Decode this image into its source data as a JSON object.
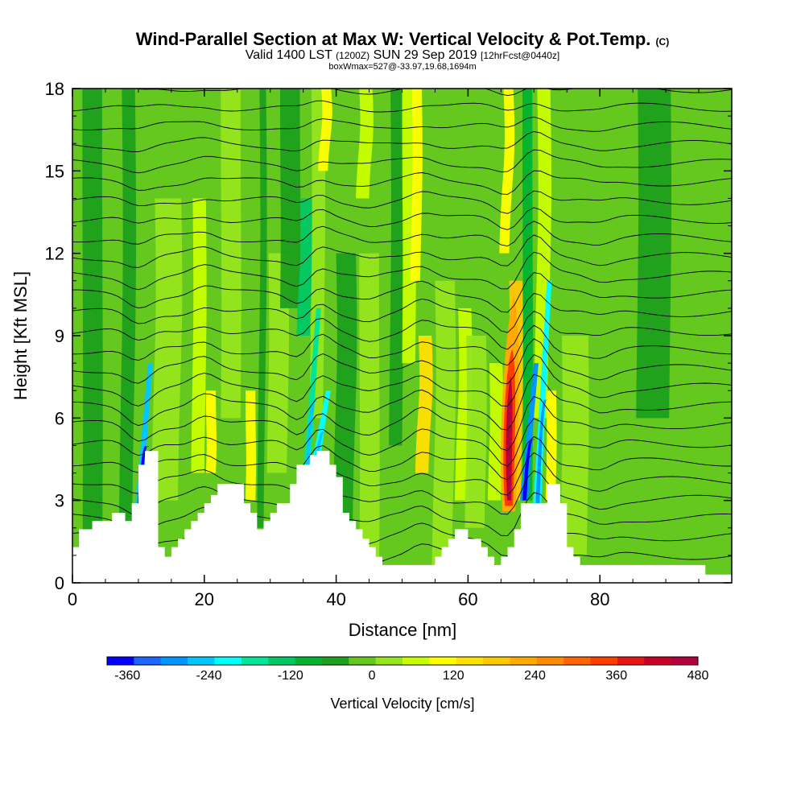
{
  "header": {
    "title": "Wind-Parallel Section at Max W: Vertical Velocity & Pot.Temp.",
    "copyright": "(C)",
    "valid_prefix": "Valid 1400 LST",
    "valid_utc": "(1200Z)",
    "valid_date": "SUN 29 Sep 2019",
    "forecast": "[12hrFcst@0440z]",
    "box_info": "boxWmax=527@-33.97,19.68,1694m"
  },
  "chart_data": {
    "type": "heatmap",
    "title": "Wind-Parallel Section at Max W: Vertical Velocity & Pot.Temp.",
    "xlabel": "Distance [nm]",
    "ylabel": "Height [Kft MSL]",
    "xlim": [
      0,
      100
    ],
    "ylim": [
      0,
      18
    ],
    "x_ticks": [
      "0",
      "20",
      "40",
      "60",
      "80"
    ],
    "y_ticks": [
      "0",
      "3",
      "6",
      "9",
      "12",
      "15",
      "18"
    ],
    "colorbar": {
      "title": "Vertical Velocity [cm/s]",
      "labels": [
        "-360",
        "-240",
        "-120",
        "0",
        "120",
        "240",
        "360",
        "480"
      ],
      "min": -390,
      "max": 480,
      "colors": [
        "#0000ff",
        "#1e64ff",
        "#0096ff",
        "#00c8ff",
        "#00ffff",
        "#00e696",
        "#00c864",
        "#00b432",
        "#1ea01e",
        "#64c81e",
        "#96e61e",
        "#c8ff00",
        "#ffff00",
        "#ffe100",
        "#ffc800",
        "#ffaa00",
        "#ff8c00",
        "#ff6400",
        "#ff3c00",
        "#e61414",
        "#c80028",
        "#b4003c"
      ]
    },
    "terrain_kft": [
      [
        0,
        1.3
      ],
      [
        1,
        1.95
      ],
      [
        2,
        1.95
      ],
      [
        3,
        2.25
      ],
      [
        4,
        2.25
      ],
      [
        5,
        2.25
      ],
      [
        6,
        2.55
      ],
      [
        7,
        2.55
      ],
      [
        8,
        2.25
      ],
      [
        9,
        2.9
      ],
      [
        10,
        4.3
      ],
      [
        11,
        4.8
      ],
      [
        12,
        4.8
      ],
      [
        13,
        1.3
      ],
      [
        14,
        0.95
      ],
      [
        15,
        1.3
      ],
      [
        16,
        1.6
      ],
      [
        17,
        1.95
      ],
      [
        18,
        2.25
      ],
      [
        19,
        2.55
      ],
      [
        20,
        2.9
      ],
      [
        21,
        3.2
      ],
      [
        22,
        3.6
      ],
      [
        23,
        3.6
      ],
      [
        24,
        3.6
      ],
      [
        25,
        3.6
      ],
      [
        26,
        2.9
      ],
      [
        27,
        2.55
      ],
      [
        28,
        1.95
      ],
      [
        29,
        2.25
      ],
      [
        30,
        2.55
      ],
      [
        31,
        2.9
      ],
      [
        32,
        2.9
      ],
      [
        33,
        3.6
      ],
      [
        34,
        4.3
      ],
      [
        35,
        4.3
      ],
      [
        36,
        4.65
      ],
      [
        37,
        4.8
      ],
      [
        38,
        4.8
      ],
      [
        39,
        4.3
      ],
      [
        40,
        3.85
      ],
      [
        41,
        2.55
      ],
      [
        42,
        2.25
      ],
      [
        43,
        1.95
      ],
      [
        44,
        1.6
      ],
      [
        45,
        1.3
      ],
      [
        46,
        0.95
      ],
      [
        47,
        0.65
      ],
      [
        48,
        0.65
      ],
      [
        49,
        0.65
      ],
      [
        50,
        0.65
      ],
      [
        51,
        0.65
      ],
      [
        52,
        0.65
      ],
      [
        53,
        0.65
      ],
      [
        54,
        0.65
      ],
      [
        55,
        0.95
      ],
      [
        56,
        1.3
      ],
      [
        57,
        1.6
      ],
      [
        58,
        1.95
      ],
      [
        59,
        1.95
      ],
      [
        60,
        1.6
      ],
      [
        61,
        1.6
      ],
      [
        62,
        1.3
      ],
      [
        63,
        0.95
      ],
      [
        64,
        0.65
      ],
      [
        65,
        0.95
      ],
      [
        66,
        1.3
      ],
      [
        67,
        1.95
      ],
      [
        68,
        2.9
      ],
      [
        69,
        2.9
      ],
      [
        70,
        2.9
      ],
      [
        71,
        2.9
      ],
      [
        72,
        3.6
      ],
      [
        73,
        3.6
      ],
      [
        74,
        2.9
      ],
      [
        75,
        1.3
      ],
      [
        76,
        0.95
      ],
      [
        77,
        0.65
      ],
      [
        78,
        0.65
      ],
      [
        80,
        0.65
      ],
      [
        90,
        0.65
      ],
      [
        95,
        0.65
      ],
      [
        96,
        0.3
      ],
      [
        100,
        0.3
      ]
    ]
  }
}
